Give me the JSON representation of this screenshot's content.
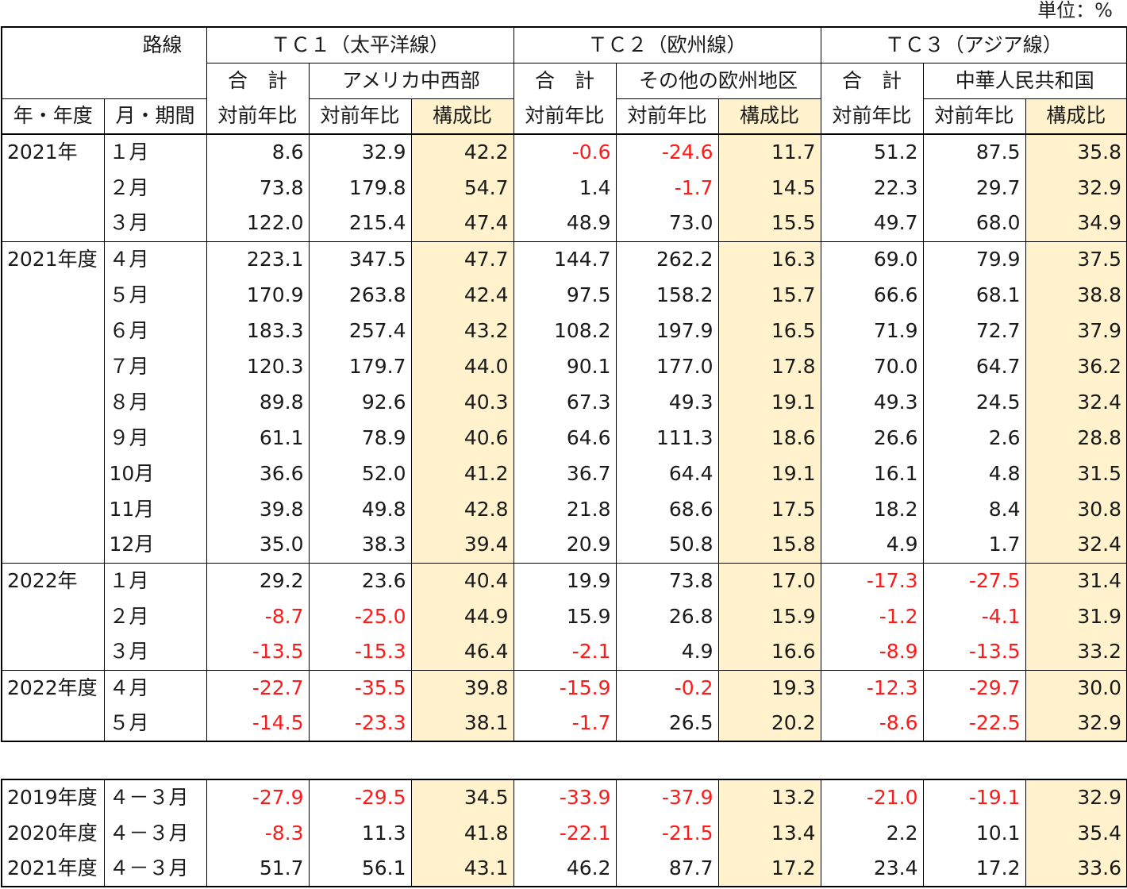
{
  "unit_label": "単位：%",
  "header": {
    "route_label": "路線",
    "year_label": "年・年度",
    "month_label": "月・期間",
    "groups": [
      {
        "name": "ＴＣ１（太平洋線）",
        "total": "合　計",
        "sub": "アメリカ中西部"
      },
      {
        "name": "ＴＣ２（欧州線）",
        "total": "合　計",
        "sub": "その他の欧州地区"
      },
      {
        "name": "ＴＣ３（アジア線）",
        "total": "合　計",
        "sub": "中華人民共和国"
      }
    ],
    "yoy_label": "対前年比",
    "share_label": "構成比"
  },
  "rows": [
    {
      "year": "2021年",
      "month": "１月",
      "v": [
        "8.6",
        "32.9",
        "42.2",
        "-0.6",
        "-24.6",
        "11.7",
        "51.2",
        "87.5",
        "35.8"
      ]
    },
    {
      "year": "",
      "month": "２月",
      "v": [
        "73.8",
        "179.8",
        "54.7",
        "1.4",
        "-1.7",
        "14.5",
        "22.3",
        "29.7",
        "32.9"
      ]
    },
    {
      "year": "",
      "month": "３月",
      "v": [
        "122.0",
        "215.4",
        "47.4",
        "48.9",
        "73.0",
        "15.5",
        "49.7",
        "68.0",
        "34.9"
      ]
    },
    {
      "year": "2021年度",
      "month": "４月",
      "v": [
        "223.1",
        "347.5",
        "47.7",
        "144.7",
        "262.2",
        "16.3",
        "69.0",
        "79.9",
        "37.5"
      ]
    },
    {
      "year": "",
      "month": "５月",
      "v": [
        "170.9",
        "263.8",
        "42.4",
        "97.5",
        "158.2",
        "15.7",
        "66.6",
        "68.1",
        "38.8"
      ]
    },
    {
      "year": "",
      "month": "６月",
      "v": [
        "183.3",
        "257.4",
        "43.2",
        "108.2",
        "197.9",
        "16.5",
        "71.9",
        "72.7",
        "37.9"
      ]
    },
    {
      "year": "",
      "month": "７月",
      "v": [
        "120.3",
        "179.7",
        "44.0",
        "90.1",
        "177.0",
        "17.8",
        "70.0",
        "64.7",
        "36.2"
      ]
    },
    {
      "year": "",
      "month": "８月",
      "v": [
        "89.8",
        "92.6",
        "40.3",
        "67.3",
        "49.3",
        "19.1",
        "49.3",
        "24.5",
        "32.4"
      ]
    },
    {
      "year": "",
      "month": "９月",
      "v": [
        "61.1",
        "78.9",
        "40.6",
        "64.6",
        "111.3",
        "18.6",
        "26.6",
        "2.6",
        "28.8"
      ]
    },
    {
      "year": "",
      "month": "10月",
      "v": [
        "36.6",
        "52.0",
        "41.2",
        "36.7",
        "64.4",
        "19.1",
        "16.1",
        "4.8",
        "31.5"
      ]
    },
    {
      "year": "",
      "month": "11月",
      "v": [
        "39.8",
        "49.8",
        "42.8",
        "21.8",
        "68.6",
        "17.5",
        "18.2",
        "8.4",
        "30.8"
      ]
    },
    {
      "year": "",
      "month": "12月",
      "v": [
        "35.0",
        "38.3",
        "39.4",
        "20.9",
        "50.8",
        "15.8",
        "4.9",
        "1.7",
        "32.4"
      ]
    },
    {
      "year": "2022年",
      "month": "１月",
      "v": [
        "29.2",
        "23.6",
        "40.4",
        "19.9",
        "73.8",
        "17.0",
        "-17.3",
        "-27.5",
        "31.4"
      ]
    },
    {
      "year": "",
      "month": "２月",
      "v": [
        "-8.7",
        "-25.0",
        "44.9",
        "15.9",
        "26.8",
        "15.9",
        "-1.2",
        "-4.1",
        "31.9"
      ]
    },
    {
      "year": "",
      "month": "３月",
      "v": [
        "-13.5",
        "-15.3",
        "46.4",
        "-2.1",
        "4.9",
        "16.6",
        "-8.9",
        "-13.5",
        "33.2"
      ]
    },
    {
      "year": "2022年度",
      "month": "４月",
      "v": [
        "-22.7",
        "-35.5",
        "39.8",
        "-15.9",
        "-0.2",
        "19.3",
        "-12.3",
        "-29.7",
        "30.0"
      ]
    },
    {
      "year": "",
      "month": "５月",
      "v": [
        "-14.5",
        "-23.3",
        "38.1",
        "-1.7",
        "26.5",
        "20.2",
        "-8.6",
        "-22.5",
        "32.9"
      ]
    }
  ],
  "summary_rows": [
    {
      "year": "2019年度",
      "month": "４－３月",
      "v": [
        "-27.9",
        "-29.5",
        "34.5",
        "-33.9",
        "-37.9",
        "13.2",
        "-21.0",
        "-19.1",
        "32.9"
      ]
    },
    {
      "year": "2020年度",
      "month": "４－３月",
      "v": [
        "-8.3",
        "11.3",
        "41.8",
        "-22.1",
        "-21.5",
        "13.4",
        "2.2",
        "10.1",
        "35.4"
      ]
    },
    {
      "year": "2021年度",
      "month": "４－３月",
      "v": [
        "51.7",
        "56.1",
        "43.1",
        "46.2",
        "87.7",
        "17.2",
        "23.4",
        "17.2",
        "33.6"
      ]
    }
  ]
}
